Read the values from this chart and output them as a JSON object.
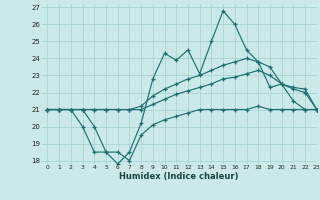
{
  "xlabel": "Humidex (Indice chaleur)",
  "background_color": "#cce9e9",
  "grid_color": "#aad4d4",
  "line_color": "#1e7070",
  "xlim": [
    -0.5,
    23
  ],
  "ylim": [
    17.8,
    27.2
  ],
  "yticks": [
    18,
    19,
    20,
    21,
    22,
    23,
    24,
    25,
    26,
    27
  ],
  "xticks": [
    0,
    1,
    2,
    3,
    4,
    5,
    6,
    7,
    8,
    9,
    10,
    11,
    12,
    13,
    14,
    15,
    16,
    17,
    18,
    19,
    20,
    21,
    22,
    23
  ],
  "hours": [
    0,
    1,
    2,
    3,
    4,
    5,
    6,
    7,
    8,
    9,
    10,
    11,
    12,
    13,
    14,
    15,
    16,
    17,
    18,
    19,
    20,
    21,
    22,
    23
  ],
  "line1": [
    21,
    21,
    21,
    20,
    18.5,
    18.5,
    17.8,
    18.5,
    20.2,
    22.8,
    24.3,
    23.9,
    24.5,
    23.1,
    25.0,
    26.8,
    26.0,
    24.5,
    23.8,
    22.3,
    22.5,
    21.5,
    21.0,
    21.0
  ],
  "line2": [
    21,
    21,
    21,
    21,
    21,
    21,
    21,
    21,
    21.2,
    21.8,
    22.2,
    22.5,
    22.8,
    23.0,
    23.3,
    23.6,
    23.8,
    24.0,
    23.8,
    23.5,
    22.5,
    22.3,
    22.2,
    21.0
  ],
  "line3": [
    21,
    21,
    21,
    21,
    21,
    21,
    21,
    21,
    21,
    21.3,
    21.6,
    21.9,
    22.1,
    22.3,
    22.5,
    22.8,
    22.9,
    23.1,
    23.3,
    23.0,
    22.5,
    22.2,
    22.0,
    21.0
  ],
  "line4": [
    21,
    21,
    21,
    21,
    20,
    18.5,
    18.5,
    18,
    19.5,
    20.1,
    20.4,
    20.6,
    20.8,
    21.0,
    21.0,
    21.0,
    21.0,
    21.0,
    21.2,
    21.0,
    21.0,
    21.0,
    21.0,
    21.0
  ]
}
